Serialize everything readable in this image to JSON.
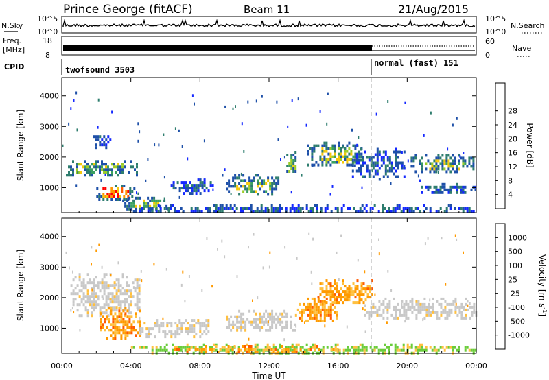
{
  "header": {
    "station": "Prince George (fitACF)",
    "beam": "Beam 11",
    "date": "21/Aug/2015"
  },
  "side_labels": {
    "nsky": "N.Sky",
    "nsky_ticks": [
      "10^5",
      "10^0"
    ],
    "freq": "Freq.",
    "freq_unit": "[MHz]",
    "freq_ticks": [
      "18",
      "8"
    ],
    "cpid": "CPID",
    "nsearch": "N.Search",
    "nsearch_ticks": [
      "10^5",
      "10^0"
    ],
    "nave": "Nave",
    "nave_ticks": [
      "60",
      "0"
    ]
  },
  "cpid_segments": [
    {
      "label": "twofsound 3503",
      "start_hour": 0,
      "end_hour": 18
    },
    {
      "label": "normal (fast) 151",
      "start_hour": 18,
      "end_hour": 24
    }
  ],
  "chart_data": [
    {
      "type": "heatmap",
      "name": "power-panel",
      "ylabel": "Slant Range [km]",
      "y_ticks": [
        "1000",
        "2000",
        "3000",
        "4000"
      ],
      "ylim": [
        180,
        4600
      ],
      "x_ticks": [
        "00:00",
        "04:00",
        "08:00",
        "12:00",
        "16:00",
        "20:00",
        "00:00"
      ],
      "xlim_hours": [
        0,
        24
      ],
      "colorbar": {
        "label": "Power [dB]",
        "ticks": [
          "4",
          "8",
          "12",
          "16",
          "20",
          "24",
          "28"
        ],
        "colors": [
          "#1428ff",
          "#1e50a8",
          "#2e7d6e",
          "#3aa060",
          "#9ccc28",
          "#f4c80a",
          "#ff9600",
          "#ff5a00",
          "#ff0000"
        ]
      },
      "features": [
        {
          "t0": 0.0,
          "t1": 4.4,
          "r0": 1400,
          "r1": 1900,
          "level": "mid"
        },
        {
          "t0": 1.8,
          "t1": 2.8,
          "r0": 2300,
          "r1": 2800,
          "level": "low"
        },
        {
          "t0": 2.0,
          "t1": 4.2,
          "r0": 600,
          "r1": 1100,
          "level": "high"
        },
        {
          "t0": 3.5,
          "t1": 6.2,
          "r0": 300,
          "r1": 700,
          "level": "mid"
        },
        {
          "t0": 6.3,
          "t1": 8.8,
          "r0": 800,
          "r1": 1300,
          "level": "low"
        },
        {
          "t0": 9.5,
          "t1": 12.5,
          "r0": 800,
          "r1": 1450,
          "level": "mid"
        },
        {
          "t0": 13.0,
          "t1": 13.6,
          "r0": 1400,
          "r1": 2200,
          "level": "mid"
        },
        {
          "t0": 14.2,
          "t1": 17.5,
          "r0": 1700,
          "r1": 2500,
          "level": "mid"
        },
        {
          "t0": 16.8,
          "t1": 19.8,
          "r0": 1300,
          "r1": 2300,
          "level": "low"
        },
        {
          "t0": 20.2,
          "t1": 24.0,
          "r0": 1500,
          "r1": 2100,
          "level": "mid"
        },
        {
          "t0": 20.8,
          "t1": 24.0,
          "r0": 850,
          "r1": 1150,
          "level": "low"
        },
        {
          "t0": 4.0,
          "t1": 24.0,
          "r0": 200,
          "r1": 450,
          "level": "low"
        }
      ]
    },
    {
      "type": "heatmap",
      "name": "velocity-panel",
      "ylabel": "Slant Range [km]",
      "y_ticks": [
        "1000",
        "2000",
        "3000",
        "4000"
      ],
      "ylim": [
        180,
        4600
      ],
      "x_ticks": [
        "00:00",
        "04:00",
        "08:00",
        "12:00",
        "16:00",
        "20:00",
        "00:00"
      ],
      "xlim_hours": [
        0,
        24
      ],
      "xlabel": "Time UT",
      "colorbar": {
        "label": "Velocity [m s",
        "label_sup": "-1",
        "label_close": "]",
        "ticks": [
          "1000",
          "500",
          "100",
          "25",
          "-25",
          "-100",
          "-500",
          "-1000"
        ],
        "colors": [
          "#2050e0",
          "#1e6e9e",
          "#2e8e4e",
          "#6acc3a",
          "#c8c8c8",
          "#ffc040",
          "#ff9a00",
          "#ff5a00",
          "#ff0000"
        ]
      },
      "features": [
        {
          "t0": 0.5,
          "t1": 4.5,
          "r0": 1400,
          "r1": 2800,
          "level": "grey"
        },
        {
          "t0": 2.2,
          "t1": 4.5,
          "r0": 700,
          "r1": 1700,
          "level": "orange"
        },
        {
          "t0": 4.5,
          "t1": 8.5,
          "r0": 700,
          "r1": 1300,
          "level": "grey"
        },
        {
          "t0": 9.5,
          "t1": 13.5,
          "r0": 900,
          "r1": 1600,
          "level": "grey"
        },
        {
          "t0": 13.5,
          "t1": 16.0,
          "r0": 1200,
          "r1": 2000,
          "level": "orange"
        },
        {
          "t0": 14.8,
          "t1": 18.0,
          "r0": 1800,
          "r1": 2600,
          "level": "orange"
        },
        {
          "t0": 17.5,
          "t1": 24.0,
          "r0": 1300,
          "r1": 2000,
          "level": "grey"
        },
        {
          "t0": 4.0,
          "t1": 24.0,
          "r0": 200,
          "r1": 500,
          "level": "green"
        },
        {
          "t0": 6.5,
          "t1": 16.0,
          "r0": 250,
          "r1": 450,
          "level": "orange"
        }
      ]
    }
  ]
}
